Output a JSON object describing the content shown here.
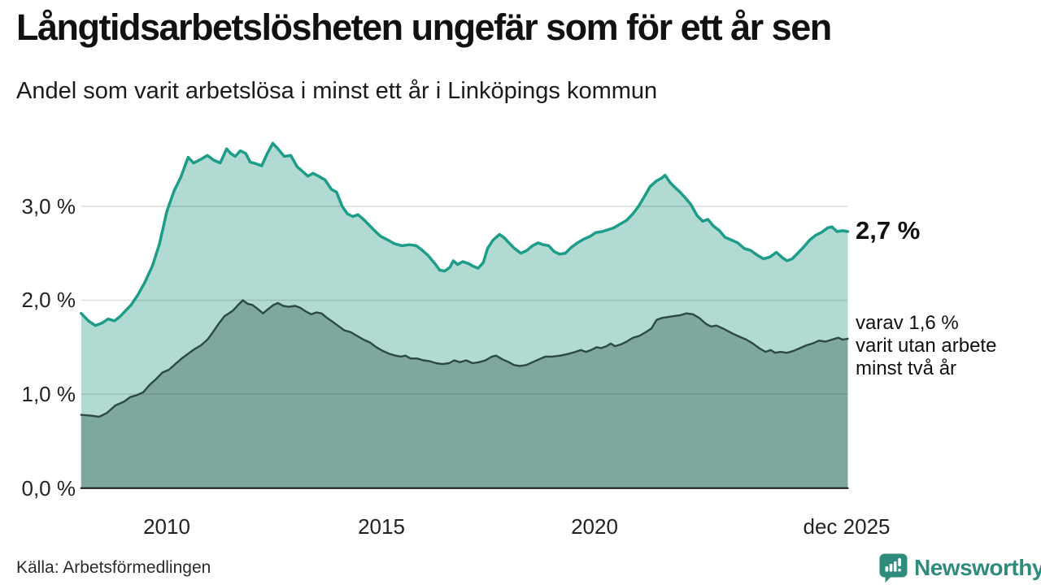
{
  "header": {
    "title": "Långtidsarbetslösheten ungefär som för ett år sen",
    "subtitle": "Andel som varit arbetslösa i minst ett år i Linköpings kommun"
  },
  "annotations": {
    "total_label": "2,7 %",
    "secondary_lines": [
      "varav 1,6 %",
      "varit utan arbete",
      "minst två år"
    ]
  },
  "footer": {
    "source": "Källa: Arbetsförmedlingen",
    "brand": "Newsworthy"
  },
  "icons": {
    "logo": "newsworthy-speech-bubble-bar-chart-icon"
  },
  "colors": {
    "total_line": "#1d9d89",
    "total_fill": "#b0dad2",
    "two_year_line": "#2c4a42",
    "two_year_fill": "#7ea89e",
    "gridline": "#d9d9d9",
    "axis": "#222222",
    "brand_teal": "#2f8c7d"
  },
  "chart_data": {
    "type": "area",
    "title": "Långtidsarbetslösheten ungefär som för ett år sen",
    "subtitle": "Andel som varit arbetslösa i minst ett år i Linköpings kommun",
    "xlabel": "",
    "ylabel": "",
    "xlim": [
      2008.0,
      2025.92
    ],
    "ylim": [
      0,
      3.75
    ],
    "grid": "horizontal",
    "legend_position": "right-annotations",
    "y_ticks": [
      {
        "label": "3,0 %",
        "value": 3.0
      },
      {
        "label": "2,0 %",
        "value": 2.0
      },
      {
        "label": "1,0 %",
        "value": 1.0
      },
      {
        "label": "0,0 %",
        "value": 0.0
      }
    ],
    "x_ticks": [
      {
        "label": "2010",
        "year": 2010
      },
      {
        "label": "2015",
        "year": 2015
      },
      {
        "label": "2020",
        "year": 2020
      },
      {
        "label": "dec 2025",
        "year": 2025.92
      }
    ],
    "series": [
      {
        "name": "Arbetslösa minst ett år (totalt)",
        "end_label": "2,7 %",
        "last_value": 2.7,
        "points": [
          [
            2008.0,
            1.86
          ],
          [
            2008.17,
            1.78
          ],
          [
            2008.33,
            1.73
          ],
          [
            2008.5,
            1.76
          ],
          [
            2008.63,
            1.8
          ],
          [
            2008.78,
            1.78
          ],
          [
            2008.92,
            1.83
          ],
          [
            2009.0,
            1.87
          ],
          [
            2009.17,
            1.95
          ],
          [
            2009.33,
            2.06
          ],
          [
            2009.5,
            2.2
          ],
          [
            2009.67,
            2.37
          ],
          [
            2009.83,
            2.6
          ],
          [
            2010.0,
            2.94
          ],
          [
            2010.17,
            3.16
          ],
          [
            2010.33,
            3.31
          ],
          [
            2010.5,
            3.52
          ],
          [
            2010.63,
            3.46
          ],
          [
            2010.8,
            3.5
          ],
          [
            2010.95,
            3.54
          ],
          [
            2011.1,
            3.49
          ],
          [
            2011.25,
            3.46
          ],
          [
            2011.4,
            3.61
          ],
          [
            2011.5,
            3.56
          ],
          [
            2011.6,
            3.53
          ],
          [
            2011.72,
            3.59
          ],
          [
            2011.85,
            3.56
          ],
          [
            2011.95,
            3.47
          ],
          [
            2012.1,
            3.45
          ],
          [
            2012.22,
            3.43
          ],
          [
            2012.35,
            3.56
          ],
          [
            2012.48,
            3.67
          ],
          [
            2012.6,
            3.61
          ],
          [
            2012.75,
            3.53
          ],
          [
            2012.9,
            3.54
          ],
          [
            2013.05,
            3.42
          ],
          [
            2013.15,
            3.38
          ],
          [
            2013.3,
            3.32
          ],
          [
            2013.42,
            3.35
          ],
          [
            2013.55,
            3.32
          ],
          [
            2013.7,
            3.28
          ],
          [
            2013.85,
            3.18
          ],
          [
            2013.97,
            3.15
          ],
          [
            2014.1,
            3.0
          ],
          [
            2014.22,
            2.92
          ],
          [
            2014.35,
            2.89
          ],
          [
            2014.47,
            2.91
          ],
          [
            2014.6,
            2.86
          ],
          [
            2014.75,
            2.79
          ],
          [
            2014.88,
            2.73
          ],
          [
            2015.0,
            2.68
          ],
          [
            2015.17,
            2.64
          ],
          [
            2015.33,
            2.6
          ],
          [
            2015.5,
            2.58
          ],
          [
            2015.67,
            2.59
          ],
          [
            2015.83,
            2.58
          ],
          [
            2015.95,
            2.54
          ],
          [
            2016.1,
            2.48
          ],
          [
            2016.25,
            2.4
          ],
          [
            2016.38,
            2.32
          ],
          [
            2016.5,
            2.31
          ],
          [
            2016.62,
            2.35
          ],
          [
            2016.7,
            2.42
          ],
          [
            2016.8,
            2.38
          ],
          [
            2016.92,
            2.41
          ],
          [
            2017.05,
            2.39
          ],
          [
            2017.17,
            2.36
          ],
          [
            2017.28,
            2.34
          ],
          [
            2017.4,
            2.4
          ],
          [
            2017.5,
            2.55
          ],
          [
            2017.63,
            2.64
          ],
          [
            2017.78,
            2.7
          ],
          [
            2017.9,
            2.66
          ],
          [
            2018.0,
            2.61
          ],
          [
            2018.13,
            2.55
          ],
          [
            2018.28,
            2.5
          ],
          [
            2018.42,
            2.53
          ],
          [
            2018.55,
            2.58
          ],
          [
            2018.68,
            2.61
          ],
          [
            2018.8,
            2.59
          ],
          [
            2018.93,
            2.58
          ],
          [
            2019.05,
            2.52
          ],
          [
            2019.18,
            2.49
          ],
          [
            2019.32,
            2.5
          ],
          [
            2019.45,
            2.56
          ],
          [
            2019.6,
            2.61
          ],
          [
            2019.75,
            2.65
          ],
          [
            2019.9,
            2.68
          ],
          [
            2020.03,
            2.72
          ],
          [
            2020.18,
            2.73
          ],
          [
            2020.32,
            2.75
          ],
          [
            2020.45,
            2.77
          ],
          [
            2020.6,
            2.81
          ],
          [
            2020.75,
            2.85
          ],
          [
            2020.9,
            2.92
          ],
          [
            2021.03,
            3.0
          ],
          [
            2021.15,
            3.09
          ],
          [
            2021.3,
            3.21
          ],
          [
            2021.45,
            3.27
          ],
          [
            2021.57,
            3.3
          ],
          [
            2021.65,
            3.33
          ],
          [
            2021.77,
            3.25
          ],
          [
            2021.88,
            3.2
          ],
          [
            2022.0,
            3.15
          ],
          [
            2022.12,
            3.09
          ],
          [
            2022.25,
            3.02
          ],
          [
            2022.4,
            2.9
          ],
          [
            2022.53,
            2.84
          ],
          [
            2022.65,
            2.86
          ],
          [
            2022.78,
            2.79
          ],
          [
            2022.92,
            2.74
          ],
          [
            2023.05,
            2.67
          ],
          [
            2023.2,
            2.64
          ],
          [
            2023.35,
            2.61
          ],
          [
            2023.5,
            2.55
          ],
          [
            2023.65,
            2.53
          ],
          [
            2023.8,
            2.48
          ],
          [
            2023.95,
            2.44
          ],
          [
            2024.1,
            2.46
          ],
          [
            2024.25,
            2.51
          ],
          [
            2024.4,
            2.45
          ],
          [
            2024.5,
            2.42
          ],
          [
            2024.62,
            2.44
          ],
          [
            2024.75,
            2.5
          ],
          [
            2024.9,
            2.57
          ],
          [
            2025.03,
            2.64
          ],
          [
            2025.17,
            2.69
          ],
          [
            2025.3,
            2.72
          ],
          [
            2025.45,
            2.77
          ],
          [
            2025.55,
            2.78
          ],
          [
            2025.67,
            2.73
          ],
          [
            2025.8,
            2.74
          ],
          [
            2025.92,
            2.73
          ]
        ]
      },
      {
        "name": "varav utan arbete minst två år",
        "end_label": "1,6 %",
        "last_value": 1.6,
        "points": [
          [
            2008.0,
            0.78
          ],
          [
            2008.25,
            0.77
          ],
          [
            2008.42,
            0.76
          ],
          [
            2008.6,
            0.8
          ],
          [
            2008.8,
            0.88
          ],
          [
            2009.0,
            0.92
          ],
          [
            2009.15,
            0.97
          ],
          [
            2009.3,
            0.99
          ],
          [
            2009.45,
            1.02
          ],
          [
            2009.6,
            1.1
          ],
          [
            2009.75,
            1.16
          ],
          [
            2009.9,
            1.23
          ],
          [
            2010.05,
            1.26
          ],
          [
            2010.2,
            1.32
          ],
          [
            2010.35,
            1.38
          ],
          [
            2010.5,
            1.43
          ],
          [
            2010.65,
            1.48
          ],
          [
            2010.8,
            1.52
          ],
          [
            2010.95,
            1.58
          ],
          [
            2011.05,
            1.64
          ],
          [
            2011.2,
            1.74
          ],
          [
            2011.35,
            1.83
          ],
          [
            2011.45,
            1.86
          ],
          [
            2011.55,
            1.89
          ],
          [
            2011.65,
            1.94
          ],
          [
            2011.78,
            2.0
          ],
          [
            2011.9,
            1.96
          ],
          [
            2012.0,
            1.95
          ],
          [
            2012.12,
            1.91
          ],
          [
            2012.25,
            1.86
          ],
          [
            2012.38,
            1.91
          ],
          [
            2012.5,
            1.95
          ],
          [
            2012.6,
            1.97
          ],
          [
            2012.72,
            1.94
          ],
          [
            2012.85,
            1.93
          ],
          [
            2013.0,
            1.94
          ],
          [
            2013.12,
            1.92
          ],
          [
            2013.25,
            1.88
          ],
          [
            2013.38,
            1.85
          ],
          [
            2013.5,
            1.87
          ],
          [
            2013.62,
            1.86
          ],
          [
            2013.75,
            1.81
          ],
          [
            2013.88,
            1.77
          ],
          [
            2014.0,
            1.73
          ],
          [
            2014.15,
            1.68
          ],
          [
            2014.3,
            1.66
          ],
          [
            2014.45,
            1.62
          ],
          [
            2014.6,
            1.58
          ],
          [
            2014.75,
            1.55
          ],
          [
            2014.9,
            1.5
          ],
          [
            2015.05,
            1.46
          ],
          [
            2015.2,
            1.43
          ],
          [
            2015.35,
            1.41
          ],
          [
            2015.48,
            1.4
          ],
          [
            2015.58,
            1.41
          ],
          [
            2015.7,
            1.38
          ],
          [
            2015.85,
            1.38
          ],
          [
            2016.0,
            1.36
          ],
          [
            2016.15,
            1.35
          ],
          [
            2016.3,
            1.33
          ],
          [
            2016.45,
            1.32
          ],
          [
            2016.6,
            1.33
          ],
          [
            2016.72,
            1.36
          ],
          [
            2016.85,
            1.34
          ],
          [
            2017.0,
            1.36
          ],
          [
            2017.15,
            1.33
          ],
          [
            2017.3,
            1.34
          ],
          [
            2017.45,
            1.36
          ],
          [
            2017.6,
            1.4
          ],
          [
            2017.7,
            1.41
          ],
          [
            2017.85,
            1.37
          ],
          [
            2018.0,
            1.34
          ],
          [
            2018.12,
            1.31
          ],
          [
            2018.25,
            1.3
          ],
          [
            2018.4,
            1.31
          ],
          [
            2018.55,
            1.34
          ],
          [
            2018.7,
            1.37
          ],
          [
            2018.85,
            1.4
          ],
          [
            2019.0,
            1.4
          ],
          [
            2019.2,
            1.41
          ],
          [
            2019.4,
            1.43
          ],
          [
            2019.55,
            1.45
          ],
          [
            2019.68,
            1.47
          ],
          [
            2019.8,
            1.45
          ],
          [
            2019.92,
            1.47
          ],
          [
            2020.05,
            1.5
          ],
          [
            2020.15,
            1.49
          ],
          [
            2020.28,
            1.51
          ],
          [
            2020.38,
            1.54
          ],
          [
            2020.48,
            1.51
          ],
          [
            2020.62,
            1.53
          ],
          [
            2020.75,
            1.56
          ],
          [
            2020.9,
            1.6
          ],
          [
            2021.05,
            1.62
          ],
          [
            2021.2,
            1.66
          ],
          [
            2021.33,
            1.7
          ],
          [
            2021.45,
            1.79
          ],
          [
            2021.57,
            1.81
          ],
          [
            2021.7,
            1.82
          ],
          [
            2021.85,
            1.83
          ],
          [
            2022.0,
            1.84
          ],
          [
            2022.15,
            1.86
          ],
          [
            2022.3,
            1.85
          ],
          [
            2022.45,
            1.81
          ],
          [
            2022.6,
            1.75
          ],
          [
            2022.72,
            1.72
          ],
          [
            2022.85,
            1.73
          ],
          [
            2023.0,
            1.7
          ],
          [
            2023.12,
            1.67
          ],
          [
            2023.25,
            1.64
          ],
          [
            2023.4,
            1.61
          ],
          [
            2023.55,
            1.58
          ],
          [
            2023.7,
            1.54
          ],
          [
            2023.85,
            1.49
          ],
          [
            2024.0,
            1.45
          ],
          [
            2024.12,
            1.47
          ],
          [
            2024.22,
            1.44
          ],
          [
            2024.35,
            1.45
          ],
          [
            2024.5,
            1.44
          ],
          [
            2024.65,
            1.46
          ],
          [
            2024.8,
            1.49
          ],
          [
            2024.95,
            1.52
          ],
          [
            2025.1,
            1.54
          ],
          [
            2025.25,
            1.57
          ],
          [
            2025.4,
            1.56
          ],
          [
            2025.55,
            1.58
          ],
          [
            2025.7,
            1.6
          ],
          [
            2025.8,
            1.58
          ],
          [
            2025.92,
            1.59
          ]
        ]
      }
    ]
  }
}
